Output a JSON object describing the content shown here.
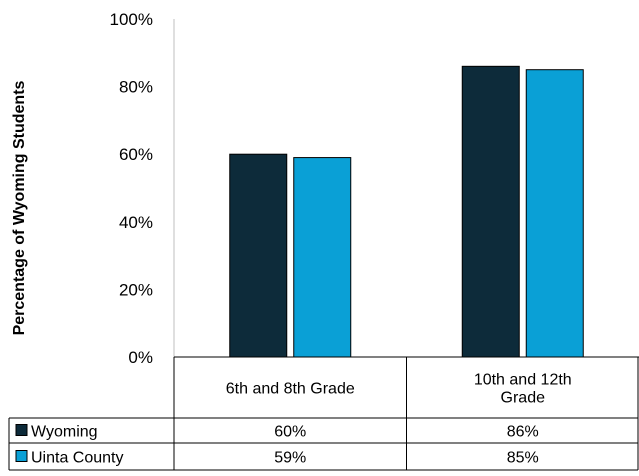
{
  "chart_data": {
    "type": "bar",
    "categories": [
      "6th and 8th Grade",
      "10th and 12th Grade"
    ],
    "category_label_lines": [
      [
        "6th and 8th Grade"
      ],
      [
        "10th and 12th",
        "Grade"
      ]
    ],
    "series": [
      {
        "name": "Wyoming",
        "values": [
          60,
          86
        ],
        "display": [
          "60%",
          "86%"
        ],
        "color": "#0d2b3a"
      },
      {
        "name": "Uinta County",
        "values": [
          59,
          85
        ],
        "display": [
          "59%",
          "85%"
        ],
        "color": "#0aa0d6"
      }
    ],
    "ylabel": "Percentage of Wyoming Students",
    "ylim": [
      0,
      100
    ],
    "yticks": [
      0,
      20,
      40,
      60,
      80,
      100
    ],
    "ytick_labels": [
      "0%",
      "20%",
      "40%",
      "60%",
      "80%",
      "100%"
    ],
    "legend": "data-table-below",
    "grid": false
  }
}
